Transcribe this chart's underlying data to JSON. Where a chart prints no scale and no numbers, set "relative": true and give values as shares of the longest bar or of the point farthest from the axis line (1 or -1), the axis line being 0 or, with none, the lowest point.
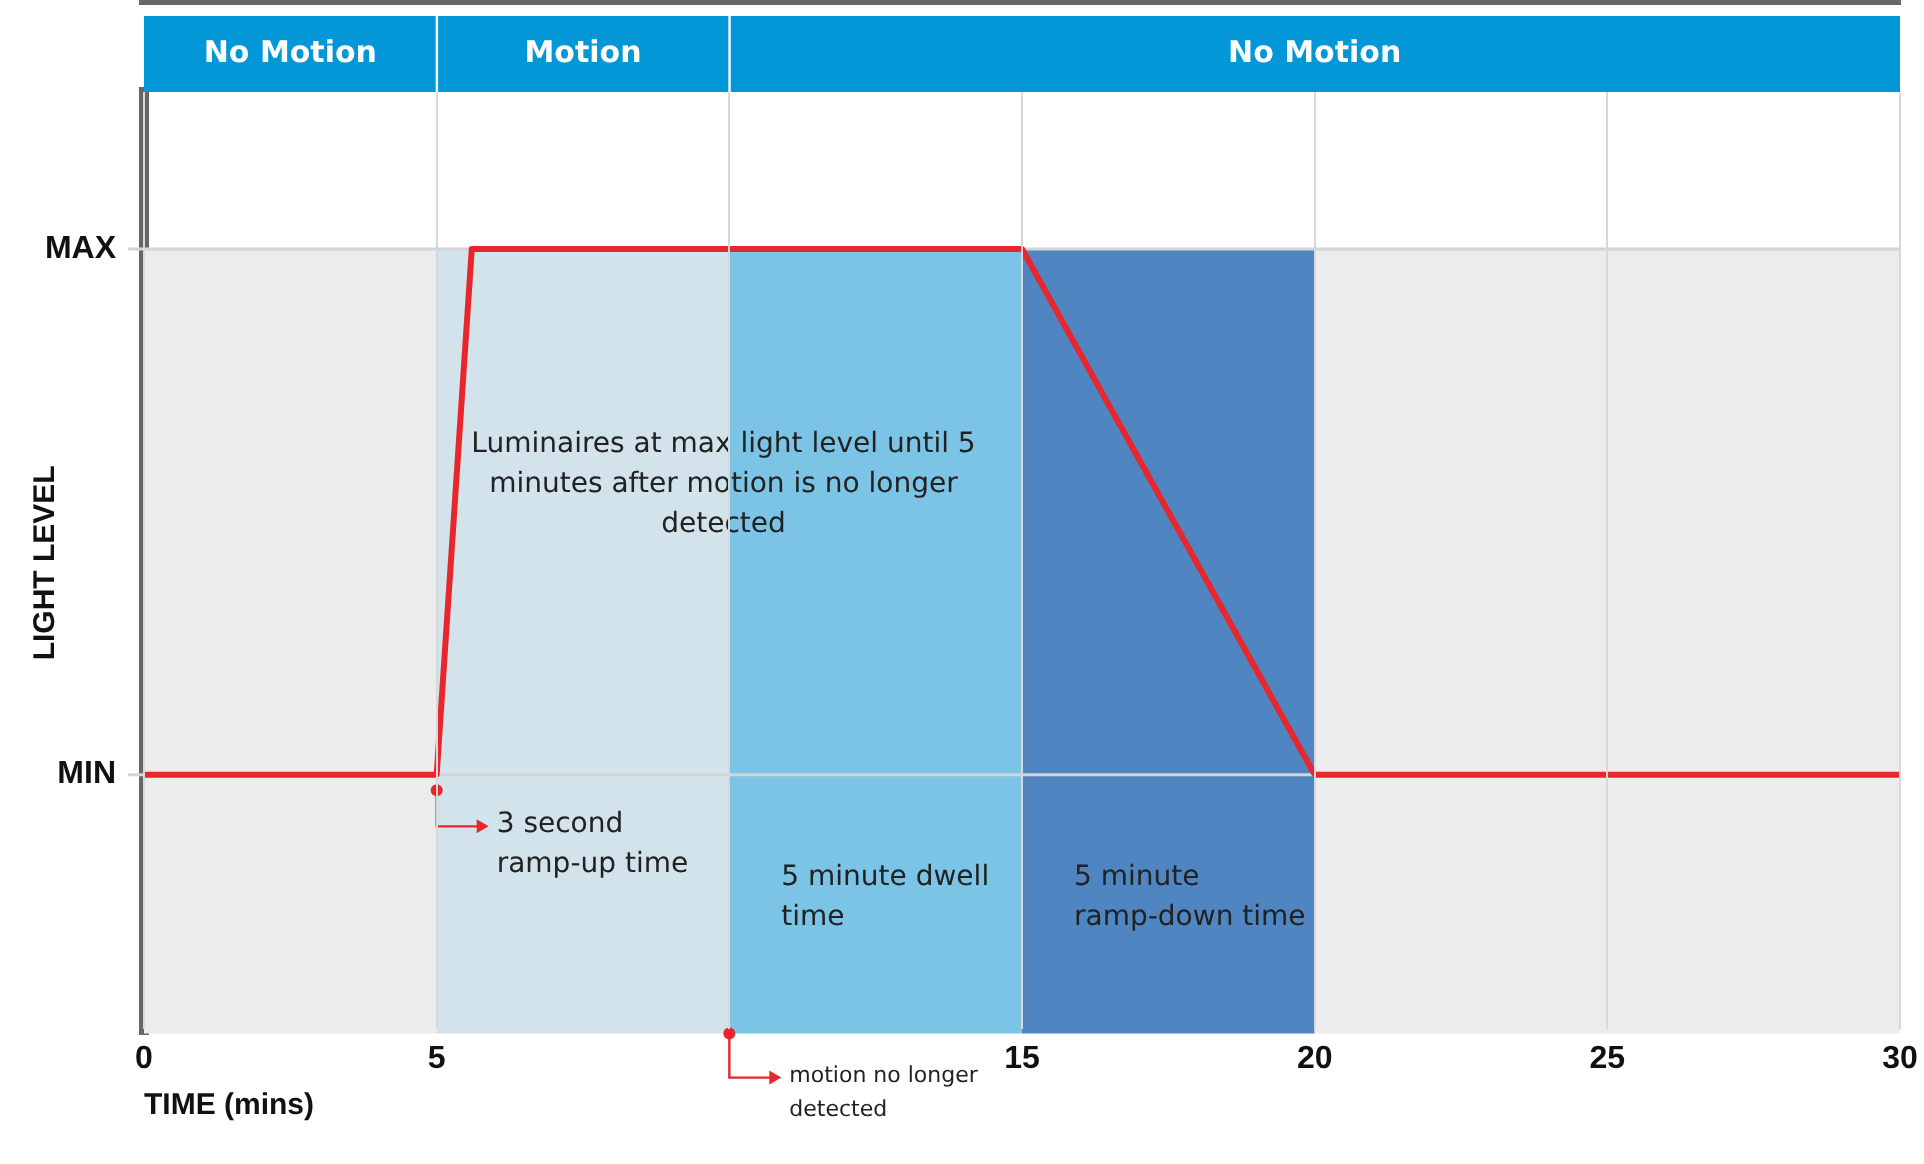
{
  "chart_data": {
    "type": "line",
    "relative": true,
    "xlabel": "TIME (mins)",
    "ylabel": "LIGHT LEVEL",
    "xlim": [
      0,
      30
    ],
    "xticks": [
      0,
      5,
      {
        "value": 10,
        "label": null
      },
      15,
      20,
      25,
      30
    ],
    "grid": "x",
    "series": [
      {
        "x": [
          0,
          5,
          5.6,
          15,
          20,
          30
        ],
        "values": [
          0.33,
          0.33,
          1,
          1,
          0.33,
          0.33
        ],
        "color": "#e8262e"
      }
    ],
    "ref_lines": [
      {
        "axis": "y",
        "value": 1,
        "label": "MAX",
        "color": "#d4d4d4"
      },
      {
        "axis": "y",
        "value": 0.33,
        "label": "MIN",
        "color": "#d4d4d4"
      }
    ],
    "bands": [
      {
        "axis": "x",
        "from": 0,
        "to": 5,
        "color": "#ececec"
      },
      {
        "axis": "x",
        "from": 5,
        "to": 10,
        "color": "#d3e3ec"
      },
      {
        "axis": "x",
        "from": 10,
        "to": 15,
        "color": "#7cc4e6",
        "label": "5 minute dwell time"
      },
      {
        "axis": "x",
        "from": 15,
        "to": 20,
        "color": "#4f86c2",
        "label": "5 minute ramp-down time"
      },
      {
        "axis": "x",
        "from": 20,
        "to": 30,
        "color": "#ececec"
      }
    ],
    "annotations": [
      "No Motion",
      "Motion",
      "No Motion",
      {
        "text": "3 second ramp-up time",
        "x": 5,
        "y": 0.31
      },
      "Luminaires at max light level until 5 minutes after motion is no longer detected",
      {
        "text": "motion no longer detected",
        "x": 10,
        "y": 0
      }
    ]
  }
}
